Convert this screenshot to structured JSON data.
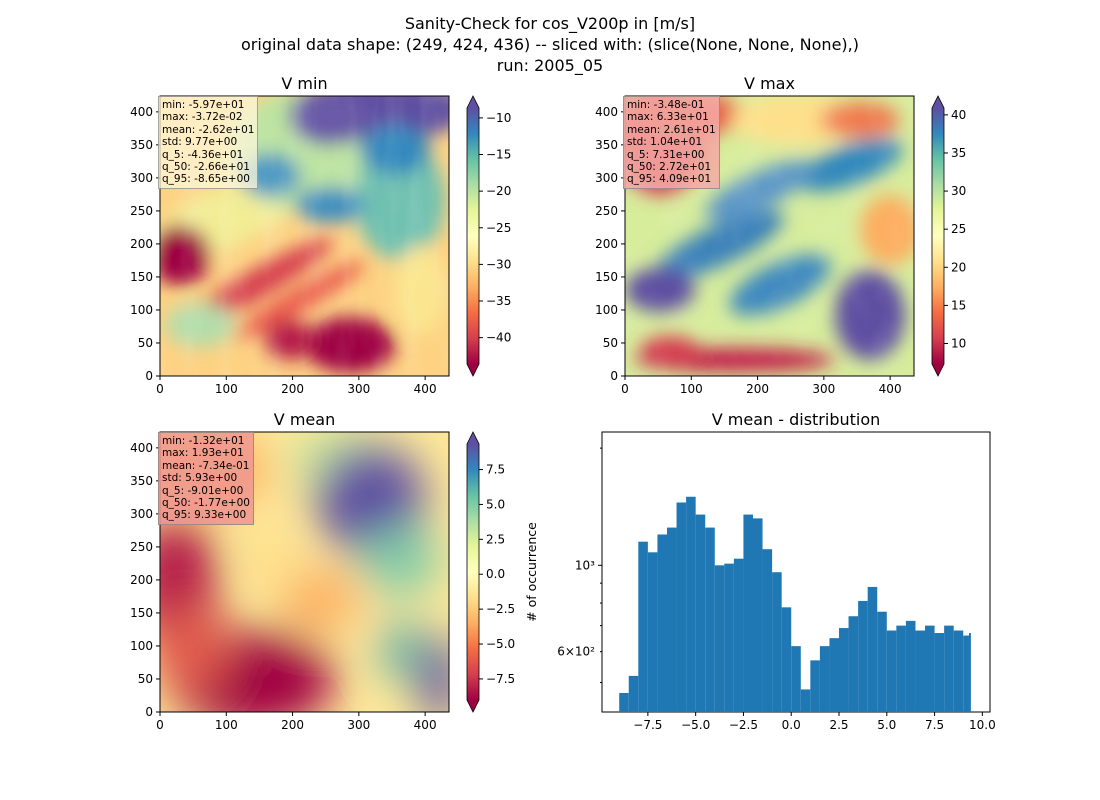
{
  "figure": {
    "title_line1": "Sanity-Check for cos_V200p in [m/s]",
    "title_line2": "original data shape: (249, 424, 436) -- sliced with: (slice(None, None, None),)",
    "title_line3": "run: 2005_05"
  },
  "chart_data": [
    {
      "type": "heatmap",
      "title": "V min",
      "colormap": "Spectral",
      "xlim": [
        0,
        436
      ],
      "ylim": [
        0,
        424
      ],
      "xticks": [
        "0",
        "100",
        "200",
        "300",
        "400"
      ],
      "yticks": [
        "0",
        "50",
        "100",
        "150",
        "200",
        "250",
        "300",
        "350",
        "400"
      ],
      "colorbar_range": [
        -43.6,
        -8.65
      ],
      "colorbar_ticks": [
        "−10",
        "−15",
        "−20",
        "−25",
        "−30",
        "−35",
        "−40"
      ],
      "stats": [
        "min: -5.97e+01",
        "max: -3.72e-02",
        "mean: -2.62e+01",
        "std: 9.77e+00",
        "q_5: -4.36e+01",
        "q_50: -2.66e+01",
        "q_95: -8.65e+00"
      ]
    },
    {
      "type": "heatmap",
      "title": "V max",
      "colormap": "Spectral",
      "xlim": [
        0,
        436
      ],
      "ylim": [
        0,
        424
      ],
      "xticks": [
        "0",
        "100",
        "200",
        "300",
        "400"
      ],
      "yticks": [
        "0",
        "50",
        "100",
        "150",
        "200",
        "250",
        "300",
        "350",
        "400"
      ],
      "colorbar_range": [
        7.31,
        40.9
      ],
      "colorbar_ticks": [
        "40",
        "35",
        "30",
        "25",
        "20",
        "15",
        "10"
      ],
      "stats": [
        "min: -3.48e-01",
        "max: 6.33e+01",
        "mean: 2.61e+01",
        "std: 1.04e+01",
        "q_5: 7.31e+00",
        "q_50: 2.72e+01",
        "q_95: 4.09e+01"
      ]
    },
    {
      "type": "heatmap",
      "title": "V mean",
      "colormap": "Spectral",
      "xlim": [
        0,
        436
      ],
      "ylim": [
        0,
        424
      ],
      "xticks": [
        "0",
        "100",
        "200",
        "300",
        "400"
      ],
      "yticks": [
        "0",
        "50",
        "100",
        "150",
        "200",
        "250",
        "300",
        "350",
        "400"
      ],
      "colorbar_range": [
        -9.01,
        9.33
      ],
      "colorbar_ticks": [
        "7.5",
        "5.0",
        "2.5",
        "0.0",
        "−2.5",
        "−5.0",
        "−7.5"
      ],
      "stats": [
        "min: -1.32e+01",
        "max: 1.93e+01",
        "mean: -7.34e-01",
        "std: 5.93e+00",
        "q_5: -9.01e+00",
        "q_50: -1.77e+00",
        "q_95: 9.33e+00"
      ]
    },
    {
      "type": "bar",
      "title": "V mean - distribution",
      "ylabel": "# of occurrence",
      "yscale": "log",
      "color": "#1f77b4",
      "xlim": [
        -9.9,
        10.4
      ],
      "ylim": [
        420,
        2200
      ],
      "xticks": [
        "−7.5",
        "−5.0",
        "−2.5",
        "0.0",
        "2.5",
        "5.0",
        "7.5",
        "10.0"
      ],
      "yticks_major": [
        "10³"
      ],
      "yticks_minor_labeled": [
        "6×10²"
      ],
      "x": [
        -9.0,
        -8.5,
        -8.0,
        -7.5,
        -7.0,
        -6.5,
        -6.0,
        -5.5,
        -5.0,
        -4.5,
        -4.0,
        -3.5,
        -3.0,
        -2.5,
        -2.0,
        -1.5,
        -1.0,
        -0.5,
        0.0,
        0.5,
        1.0,
        1.5,
        2.0,
        2.5,
        3.0,
        3.5,
        4.0,
        4.5,
        5.0,
        5.5,
        6.0,
        6.5,
        7.0,
        7.5,
        8.0,
        8.5,
        9.0,
        9.3
      ],
      "values": [
        470,
        520,
        1150,
        1080,
        1200,
        1250,
        1450,
        1500,
        1350,
        1250,
        1000,
        1010,
        1040,
        1350,
        1320,
        1100,
        960,
        780,
        620,
        480,
        570,
        620,
        650,
        690,
        740,
        810,
        880,
        760,
        680,
        700,
        720,
        680,
        700,
        670,
        700,
        680,
        660,
        670
      ]
    }
  ]
}
